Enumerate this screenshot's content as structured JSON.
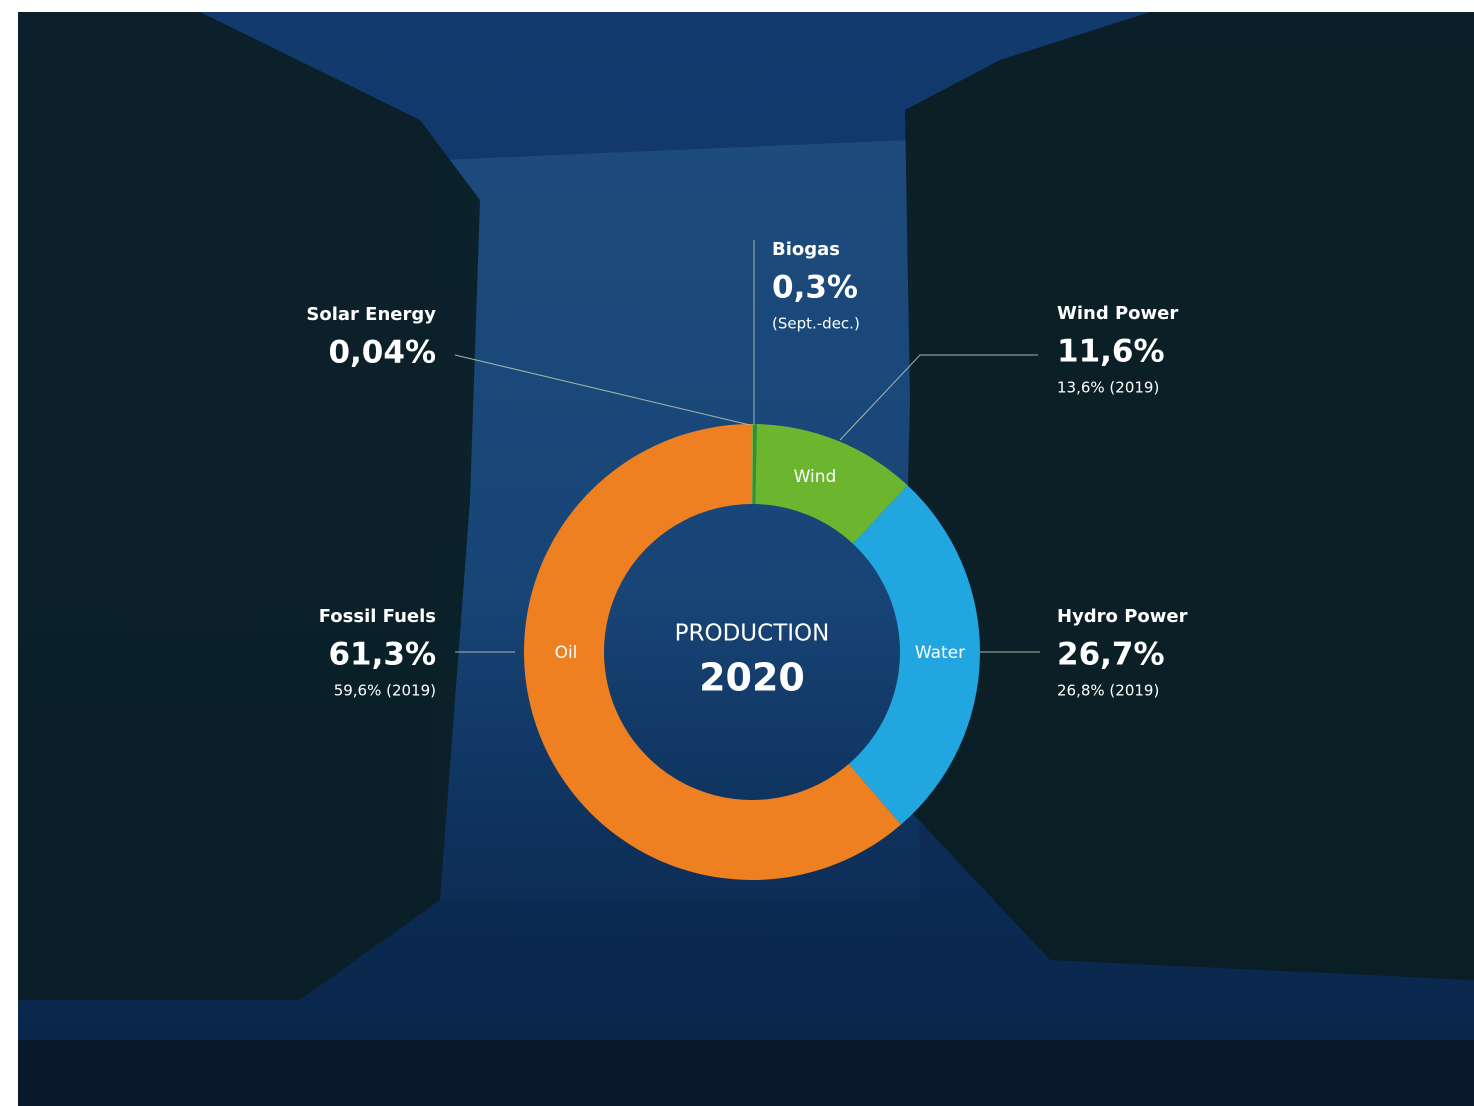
{
  "chart_data": {
    "type": "donut",
    "center_title": "PRODUCTION",
    "center_subtitle": "2020",
    "categories": [
      "Solar Energy",
      "Biogas",
      "Wind Power",
      "Hydro Power",
      "Fossil Fuels"
    ],
    "values": [
      0.04,
      0.3,
      11.6,
      26.7,
      61.3
    ],
    "value_labels": [
      "0,04%",
      "0,3%",
      "11,6%",
      "26,7%",
      "61,3%"
    ],
    "slice_labels": [
      null,
      null,
      "Wind",
      "Water",
      "Oil"
    ],
    "annotations": [
      null,
      "(Sept.-dec.)",
      "13,6% (2019)",
      "26,8% (2019)",
      "59,6% (2019)"
    ],
    "colors": [
      "#d7d63a",
      "#2f8f3c",
      "#6cb52f",
      "#21a6e0",
      "#ee8021"
    ]
  }
}
